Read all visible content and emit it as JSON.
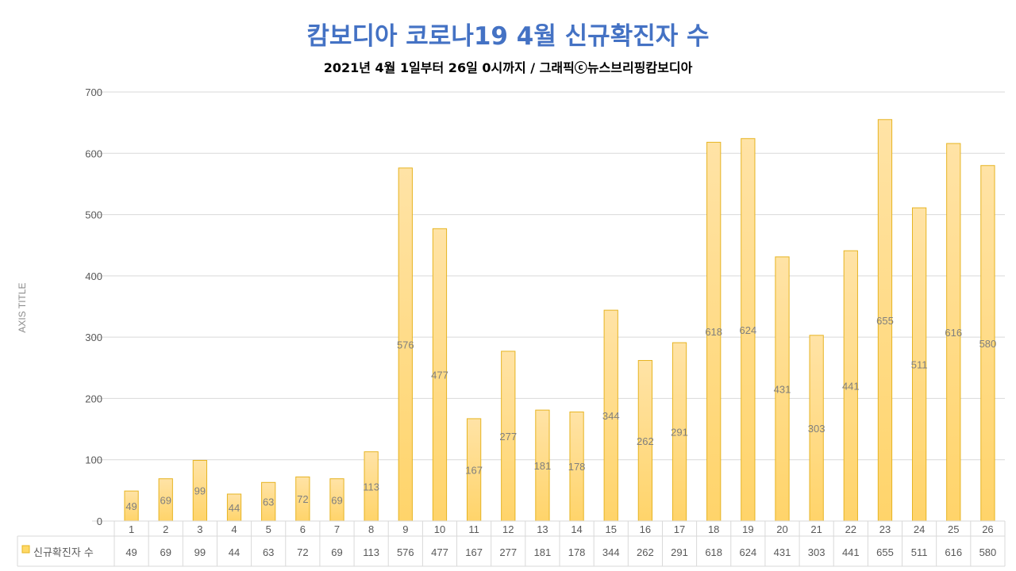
{
  "chart_data": {
    "type": "bar",
    "title": "캄보디아 코로나19 4월 신규확진자 수",
    "subtitle": "2021년 4월 1일부터 26일 0시까지 / 그래픽ⓒ뉴스브리핑캄보디아",
    "ylabel": "AXIS TITLE",
    "xlabel": "",
    "ylim": [
      0,
      700
    ],
    "yticks": [
      0,
      100,
      200,
      300,
      400,
      500,
      600,
      700
    ],
    "grid": true,
    "data_table": true,
    "categories": [
      "1",
      "2",
      "3",
      "4",
      "5",
      "6",
      "7",
      "8",
      "9",
      "10",
      "11",
      "12",
      "13",
      "14",
      "15",
      "16",
      "17",
      "18",
      "19",
      "20",
      "21",
      "22",
      "23",
      "24",
      "25",
      "26"
    ],
    "series": [
      {
        "name": "신규확진자 수",
        "values": [
          49,
          69,
          99,
          44,
          63,
          72,
          69,
          113,
          576,
          477,
          167,
          277,
          181,
          178,
          344,
          262,
          291,
          618,
          624,
          431,
          303,
          441,
          655,
          511,
          616,
          580
        ],
        "color": "#FFD966"
      }
    ]
  }
}
